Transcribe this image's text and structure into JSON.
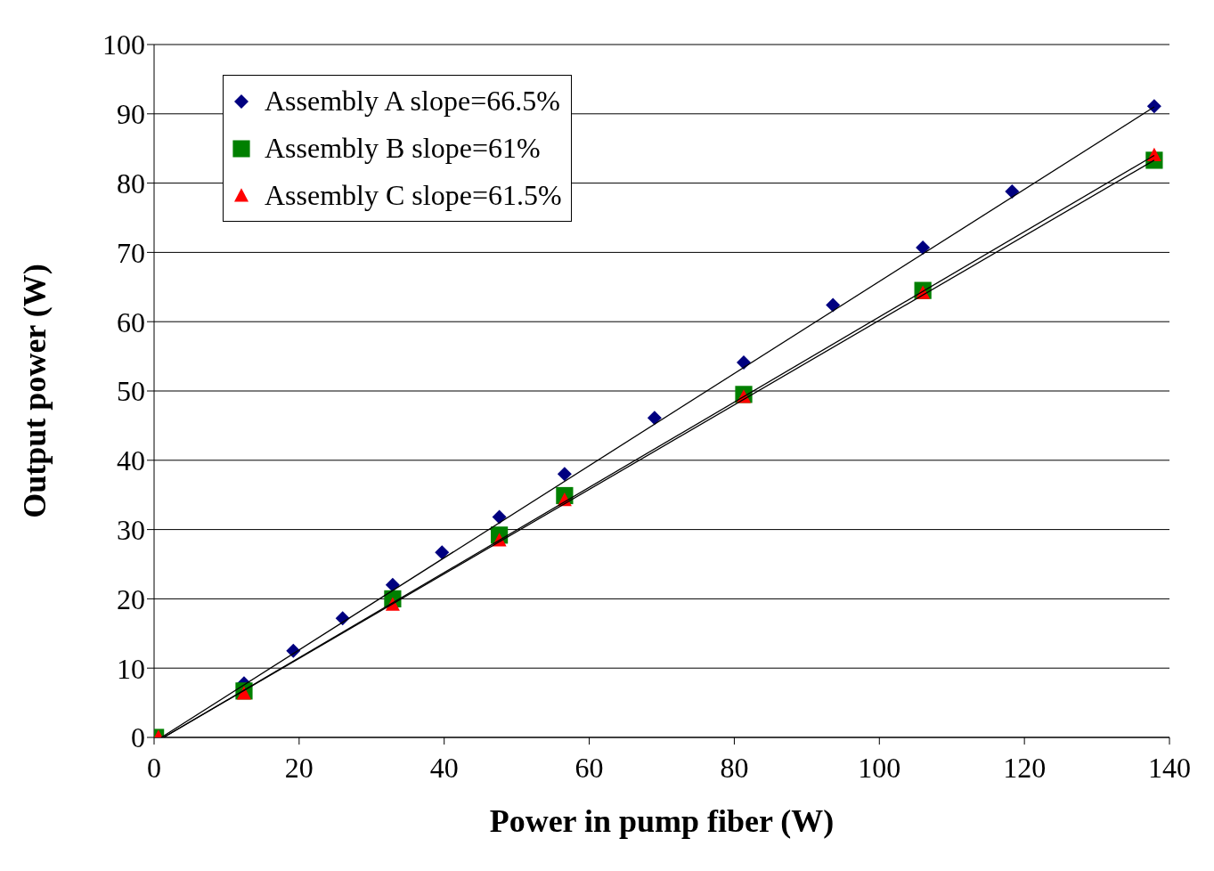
{
  "chart_data": {
    "type": "scatter",
    "xlabel": "Power in pump fiber (W)",
    "ylabel": "Output power (W)",
    "xlim": [
      0,
      140
    ],
    "xticks": [
      0,
      20,
      40,
      60,
      80,
      100,
      120,
      140
    ],
    "ylim": [
      0,
      100
    ],
    "yticks": [
      0,
      10,
      20,
      30,
      40,
      50,
      60,
      70,
      80,
      90,
      100
    ],
    "grid": "y",
    "legend": "top left",
    "series": [
      {
        "name": "Assembly A slope=66.5%",
        "color": "#000080",
        "marker": "diamond",
        "x": [
          12.4,
          19.2,
          26.0,
          32.9,
          39.7,
          47.6,
          56.6,
          69.0,
          81.3,
          93.6,
          106.0,
          118.3,
          137.9
        ],
        "values": [
          7.8,
          12.5,
          17.2,
          22.0,
          26.7,
          31.8,
          38.0,
          46.1,
          54.1,
          62.4,
          70.7,
          78.8,
          91.1
        ]
      },
      {
        "name": "Assembly B slope=61%",
        "color": "#008000",
        "marker": "square",
        "x": [
          0.2,
          12.4,
          32.9,
          47.6,
          56.6,
          81.3,
          106.0,
          137.9
        ],
        "values": [
          0,
          6.7,
          20.0,
          29.2,
          34.9,
          49.5,
          64.5,
          83.3
        ]
      },
      {
        "name": "Assembly C slope=61.5%",
        "color": "#ff0000",
        "marker": "triangle",
        "x": [
          0.6,
          12.4,
          32.9,
          47.6,
          56.6,
          81.3,
          106.0,
          137.9
        ],
        "values": [
          0,
          6.3,
          19.1,
          28.4,
          34.2,
          49.1,
          64.1,
          84.0
        ]
      },
      {
        "type": "line",
        "color": "#000000",
        "marker": "none",
        "x": [
          1.0,
          137.9
        ],
        "values": [
          0,
          91.0
        ]
      },
      {
        "type": "line",
        "color": "#000000",
        "marker": "none",
        "x": [
          1.3,
          137.9
        ],
        "values": [
          0,
          83.3
        ]
      },
      {
        "type": "line",
        "color": "#000000",
        "marker": "none",
        "x": [
          1.3,
          137.9
        ],
        "values": [
          0,
          84.0
        ]
      }
    ]
  }
}
